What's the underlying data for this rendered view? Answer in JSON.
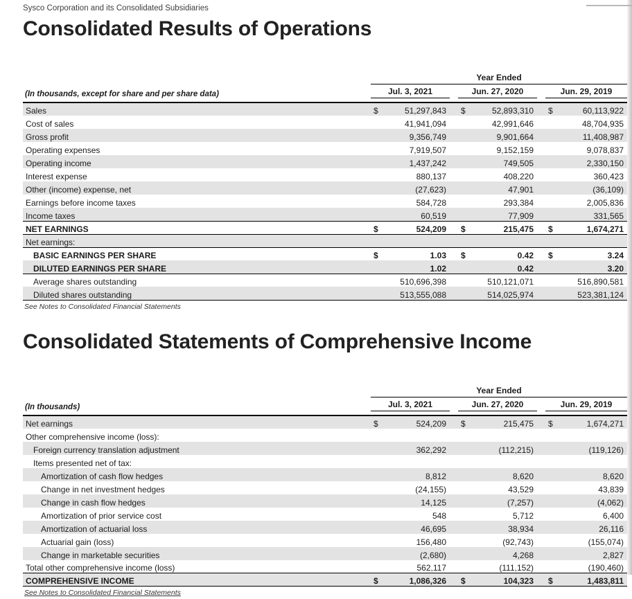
{
  "currency_symbol": "$",
  "page": {
    "subtitle": "Sysco Corporation and its Consolidated Subsidiaries",
    "sections": [
      {
        "title": "Consolidated Results of Operations"
      },
      {
        "title": "Consolidated Statements of Comprehensive Income"
      }
    ]
  },
  "tables": [
    {
      "caption": "(In thousands, except for share and per share data)",
      "year_ended_label": "Year Ended",
      "columns": [
        "Jul. 3, 2021",
        "Jun. 27, 2020",
        "Jun. 29, 2019"
      ],
      "footnote": "See Notes to Consolidated Financial Statements",
      "rows": [
        {
          "label": "Sales",
          "dollar": true,
          "values": [
            "51,297,843",
            "52,893,310",
            "60,113,922"
          ]
        },
        {
          "label": "Cost of sales",
          "values": [
            "41,941,094",
            "42,991,646",
            "48,704,935"
          ]
        },
        {
          "label": "Gross profit",
          "values": [
            "9,356,749",
            "9,901,664",
            "11,408,987"
          ]
        },
        {
          "label": "Operating expenses",
          "values": [
            "7,919,507",
            "9,152,159",
            "9,078,837"
          ]
        },
        {
          "label": "Operating income",
          "values": [
            "1,437,242",
            "749,505",
            "2,330,150"
          ]
        },
        {
          "label": "Interest expense",
          "values": [
            "880,137",
            "408,220",
            "360,423"
          ]
        },
        {
          "label": "Other (income) expense, net",
          "values": [
            "(27,623)",
            "47,901",
            "(36,109)"
          ]
        },
        {
          "label": "Earnings before income taxes",
          "values": [
            "584,728",
            "293,384",
            "2,005,836"
          ]
        },
        {
          "label": "Income taxes",
          "values": [
            "60,519",
            "77,909",
            "331,565"
          ]
        },
        {
          "label": "NET EARNINGS",
          "bold": true,
          "dollar": true,
          "rules": "top bottom",
          "values": [
            "524,209",
            "215,475",
            "1,674,271"
          ]
        },
        {
          "label": "Net earnings:",
          "values": []
        },
        {
          "label": "BASIC EARNINGS PER SHARE",
          "bold": true,
          "indent": 1,
          "dollar": true,
          "rules": "top",
          "values": [
            "1.03",
            "0.42",
            "3.24"
          ]
        },
        {
          "label": "DILUTED EARNINGS PER SHARE",
          "bold": true,
          "indent": 1,
          "rules": "bottom",
          "values": [
            "1.02",
            "0.42",
            "3.20"
          ]
        },
        {
          "label": "Average shares outstanding",
          "indent": 1,
          "values": [
            "510,696,398",
            "510,121,071",
            "516,890,581"
          ]
        },
        {
          "label": "Diluted shares outstanding",
          "indent": 1,
          "rules": "bottom",
          "values": [
            "513,555,088",
            "514,025,974",
            "523,381,124"
          ]
        }
      ]
    },
    {
      "caption": "(In thousands)",
      "year_ended_label": "Year Ended",
      "columns": [
        "Jul. 3, 2021",
        "Jun. 27, 2020",
        "Jun. 29, 2019"
      ],
      "footnote": "See Notes to Consolidated Financial Statements",
      "rows": [
        {
          "label": "Net earnings",
          "dollar": true,
          "values": [
            "524,209",
            "215,475",
            "1,674,271"
          ]
        },
        {
          "label": "Other comprehensive income (loss):",
          "values": []
        },
        {
          "label": "Foreign currency translation adjustment",
          "indent": 1,
          "values": [
            "362,292",
            "(112,215)",
            "(119,126)"
          ]
        },
        {
          "label": "Items presented net of tax:",
          "indent": 1,
          "values": []
        },
        {
          "label": "Amortization of cash flow hedges",
          "indent": 2,
          "values": [
            "8,812",
            "8,620",
            "8,620"
          ]
        },
        {
          "label": "Change in net investment hedges",
          "indent": 2,
          "values": [
            "(24,155)",
            "43,529",
            "43,839"
          ]
        },
        {
          "label": "Change in cash flow hedges",
          "indent": 2,
          "values": [
            "14,125",
            "(7,257)",
            "(4,062)"
          ]
        },
        {
          "label": "Amortization of prior service cost",
          "indent": 2,
          "values": [
            "548",
            "5,712",
            "6,400"
          ]
        },
        {
          "label": "Amortization of actuarial loss",
          "indent": 2,
          "values": [
            "46,695",
            "38,934",
            "26,116"
          ]
        },
        {
          "label": "Actuarial gain (loss)",
          "indent": 2,
          "values": [
            "156,480",
            "(92,743)",
            "(155,074)"
          ]
        },
        {
          "label": "Change in marketable securities",
          "indent": 2,
          "values": [
            "(2,680)",
            "4,268",
            "2,827"
          ]
        },
        {
          "label": "Total other comprehensive income (loss)",
          "values": [
            "562,117",
            "(111,152)",
            "(190,460)"
          ]
        },
        {
          "label": "COMPREHENSIVE INCOME",
          "bold": true,
          "dollar": true,
          "rules": "top bottom",
          "values": [
            "1,086,326",
            "104,323",
            "1,483,811"
          ]
        }
      ]
    }
  ]
}
